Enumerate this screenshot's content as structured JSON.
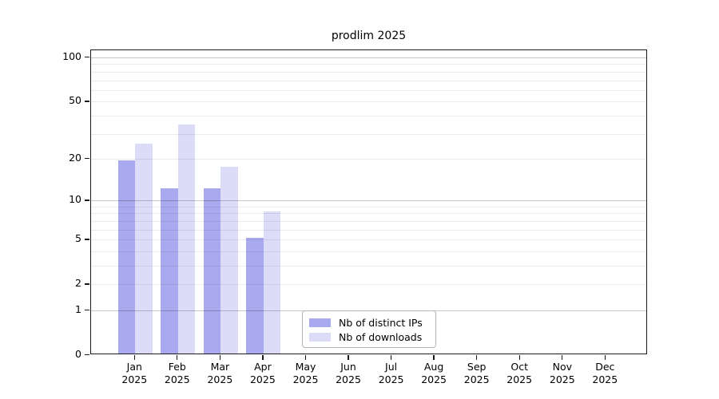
{
  "title": "prodlim 2025",
  "chart_data": {
    "type": "bar",
    "title": "prodlim 2025",
    "year_label": "2025",
    "categories": [
      "Jan",
      "Feb",
      "Mar",
      "Apr",
      "May",
      "Jun",
      "Jul",
      "Aug",
      "Sep",
      "Oct",
      "Nov",
      "Dec"
    ],
    "series": [
      {
        "key": "distinct-ips",
        "name": "Nb of distinct IPs",
        "color": "#a9a9f0",
        "values": [
          19,
          12,
          12,
          5,
          0,
          0,
          0,
          0,
          0,
          0,
          0,
          0
        ]
      },
      {
        "key": "downloads",
        "name": "Nb of downloads",
        "color": "#dcdcf8",
        "values": [
          25,
          34,
          17,
          8,
          0,
          0,
          0,
          0,
          0,
          0,
          0,
          0
        ]
      }
    ],
    "yscale": "log1p",
    "ylim": [
      0,
      100
    ],
    "y_tick_values": [
      0,
      1,
      2,
      5,
      10,
      20,
      50,
      100
    ],
    "gridline_values": [
      1,
      2,
      3,
      4,
      5,
      6,
      7,
      8,
      9,
      10,
      20,
      30,
      40,
      50,
      60,
      70,
      80,
      90,
      100
    ],
    "major_gridline_values": [
      1,
      10,
      100
    ],
    "grid": true,
    "legend_position": "inside-bottom-center",
    "colors": {
      "frame": "#1a1a1a",
      "grid_minor": "#ececec",
      "grid_major": "#c8c8c8"
    }
  }
}
